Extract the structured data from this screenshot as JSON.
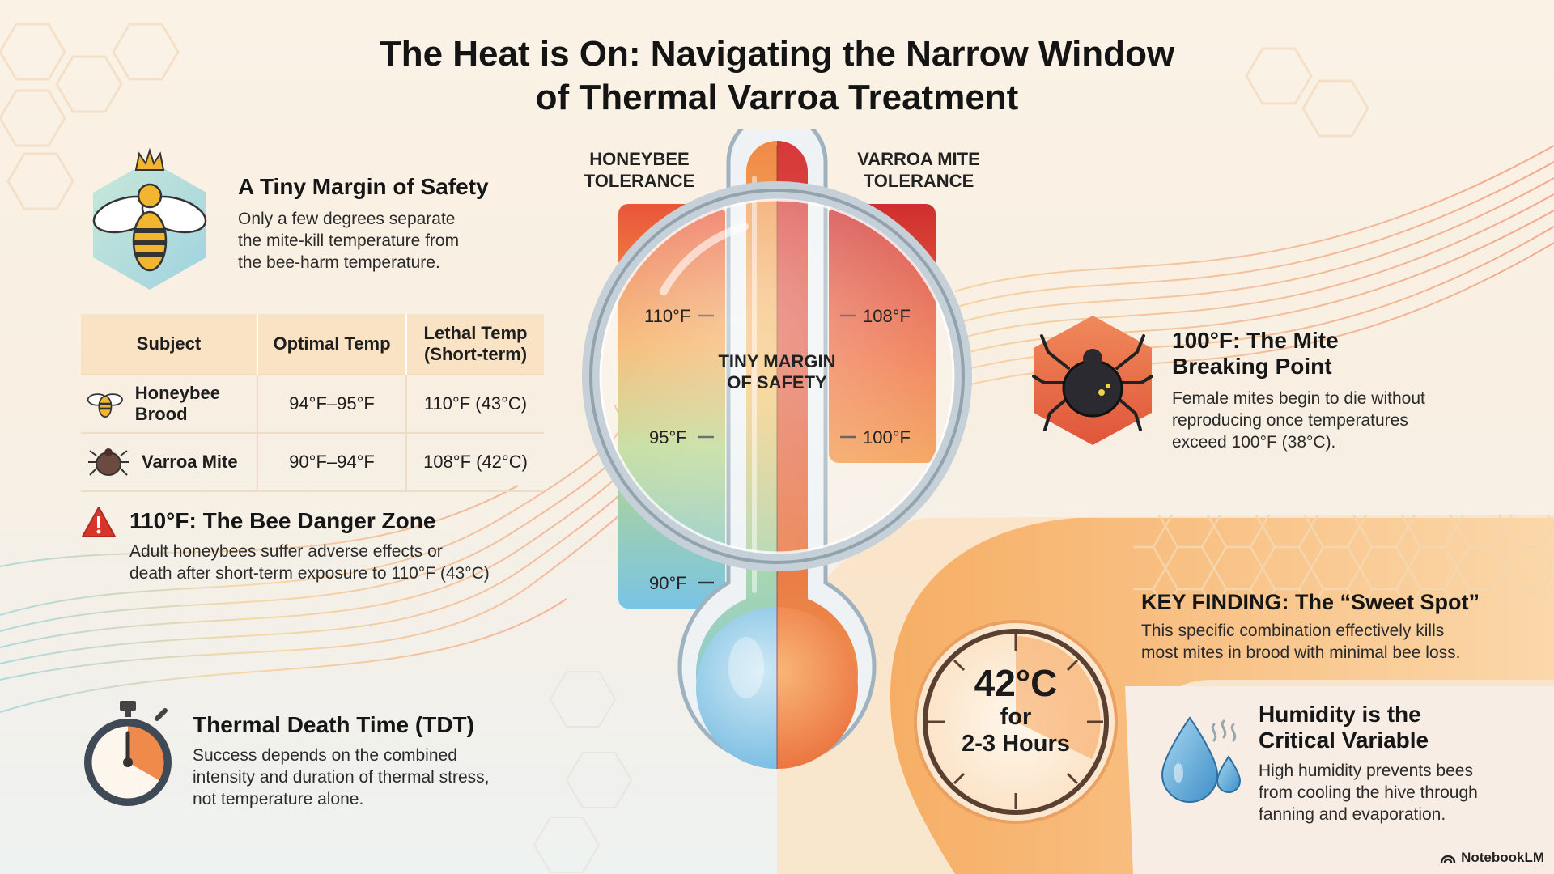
{
  "title": {
    "line1": "The Heat is On: Navigating the Narrow Window",
    "line2": "of Thermal Varroa Treatment"
  },
  "margin_section": {
    "icon": "crowned-bee-icon",
    "heading": "A Tiny Margin of Safety",
    "body": [
      "Only a few degrees separate",
      "the mite-kill temperature from",
      "the bee-harm temperature."
    ]
  },
  "table": {
    "headers": [
      "Subject",
      "Optimal Temp",
      "Lethal Temp (Short-term)"
    ],
    "rows": [
      {
        "subject": "Honeybee Brood",
        "icon": "bee-icon",
        "optimal": "94°F–95°F",
        "lethal": "110°F (43°C)"
      },
      {
        "subject": "Varroa Mite",
        "icon": "mite-icon",
        "optimal": "90°F–94°F",
        "lethal": "108°F (42°C)"
      }
    ]
  },
  "danger_section": {
    "icon": "warning-icon",
    "heading": "110°F: The Bee Danger Zone",
    "body": [
      "Adult honeybees suffer adverse effects or",
      "death after short-term exposure to 110°F (43°C)"
    ]
  },
  "tdt_section": {
    "icon": "stopwatch-icon",
    "heading": "Thermal Death Time (TDT)",
    "body": [
      "Success depends on the combined",
      "intensity and duration of thermal stress,",
      "not temperature alone."
    ]
  },
  "thermometer": {
    "left_label": "HONEYBEE TOLERANCE",
    "right_label": "VARROA MITE TOLERANCE",
    "left_ticks": [
      "110°F",
      "95°F",
      "90°F"
    ],
    "right_ticks": [
      "108°F",
      "100°F"
    ],
    "center_label": "TINY MARGIN OF SAFETY",
    "icon": "magnifier-icon"
  },
  "mite_section": {
    "icon": "mite-icon",
    "heading": [
      "100°F: The Mite",
      "Breaking Point"
    ],
    "body": [
      "Female mites begin to die without",
      "reproducing once temperatures",
      "exceed 100°F (38°C)."
    ]
  },
  "key_finding": {
    "heading": "KEY FINDING: The “Sweet Spot”",
    "body": [
      "This specific combination effectively kills",
      "most mites in brood with minimal bee loss."
    ],
    "dial_temp": "42°C",
    "dial_for": "for",
    "dial_duration": "2-3 Hours",
    "icon": "clock-dial-icon"
  },
  "humidity_section": {
    "icon": "water-drop-icon",
    "heading": [
      "Humidity is the",
      "Critical Variable"
    ],
    "body": [
      "High humidity prevents bees",
      "from cooling the hive through",
      "fanning and evaporation."
    ]
  },
  "brand": "NotebookLM",
  "colors": {
    "hot": "#e8492b",
    "warm": "#f29a3a",
    "cool": "#7cc0e0",
    "cream": "#fbf2e6"
  }
}
